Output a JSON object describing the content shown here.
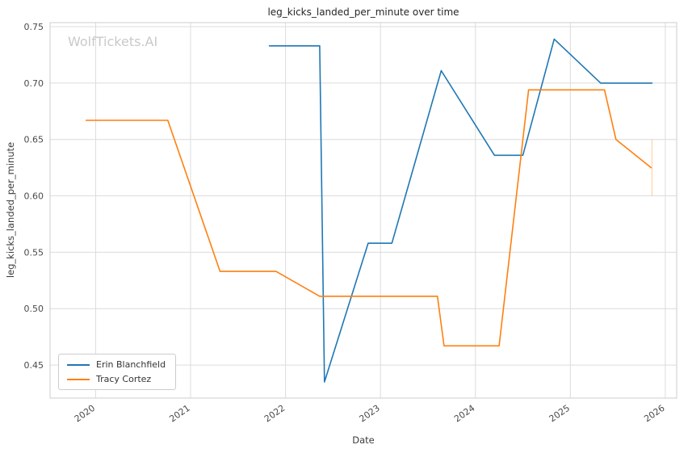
{
  "watermark": {
    "text": "WolfTickets.AI",
    "color": "#c9c9c9"
  },
  "chart_data": {
    "type": "line",
    "title": "leg_kicks_landed_per_minute over time",
    "xlabel": "Date",
    "ylabel": "leg_kicks_landed_per_minute",
    "grid": true,
    "legend_position": "lower left",
    "xlim": [
      2019.52,
      2026.12
    ],
    "ylim": [
      0.4207,
      0.7536
    ],
    "x_ticks": [
      2020,
      2021,
      2022,
      2023,
      2024,
      2025,
      2026
    ],
    "x_tick_labels": [
      "2020",
      "2021",
      "2022",
      "2023",
      "2024",
      "2025",
      "2026"
    ],
    "y_ticks": [
      0.45,
      0.5,
      0.55,
      0.6,
      0.65,
      0.7,
      0.75
    ],
    "y_tick_labels": [
      "0.45",
      "0.50",
      "0.55",
      "0.60",
      "0.65",
      "0.70",
      "0.75"
    ],
    "series": [
      {
        "name": "Erin Blanchfield",
        "color": "#1f77b4",
        "points": [
          [
            2021.83,
            0.733
          ],
          [
            2022.36,
            0.733
          ],
          [
            2022.41,
            0.435
          ],
          [
            2022.87,
            0.558
          ],
          [
            2023.12,
            0.558
          ],
          [
            2023.64,
            0.711
          ],
          [
            2024.2,
            0.636
          ],
          [
            2024.5,
            0.636
          ],
          [
            2024.83,
            0.739
          ],
          [
            2025.32,
            0.7
          ],
          [
            2025.86,
            0.7
          ]
        ]
      },
      {
        "name": "Tracy Cortez",
        "color": "#ff7f0e",
        "points": [
          [
            2019.9,
            0.667
          ],
          [
            2020.76,
            0.667
          ],
          [
            2021.31,
            0.533
          ],
          [
            2021.9,
            0.533
          ],
          [
            2022.36,
            0.511
          ],
          [
            2023.6,
            0.511
          ],
          [
            2023.67,
            0.467
          ],
          [
            2024.25,
            0.467
          ],
          [
            2024.56,
            0.694
          ],
          [
            2025.36,
            0.694
          ],
          [
            2025.48,
            0.65
          ],
          [
            2025.85,
            0.625
          ]
        ]
      }
    ],
    "annotations": [
      {
        "type": "vline",
        "x": 2025.86,
        "y_from": 0.6,
        "y_to": 0.65,
        "color": "#ff7f0e",
        "opacity": 0.35
      }
    ],
    "colors": {
      "grid": "#dcdcdc",
      "border": "#cccccc",
      "text": "#3c3c3c"
    }
  }
}
